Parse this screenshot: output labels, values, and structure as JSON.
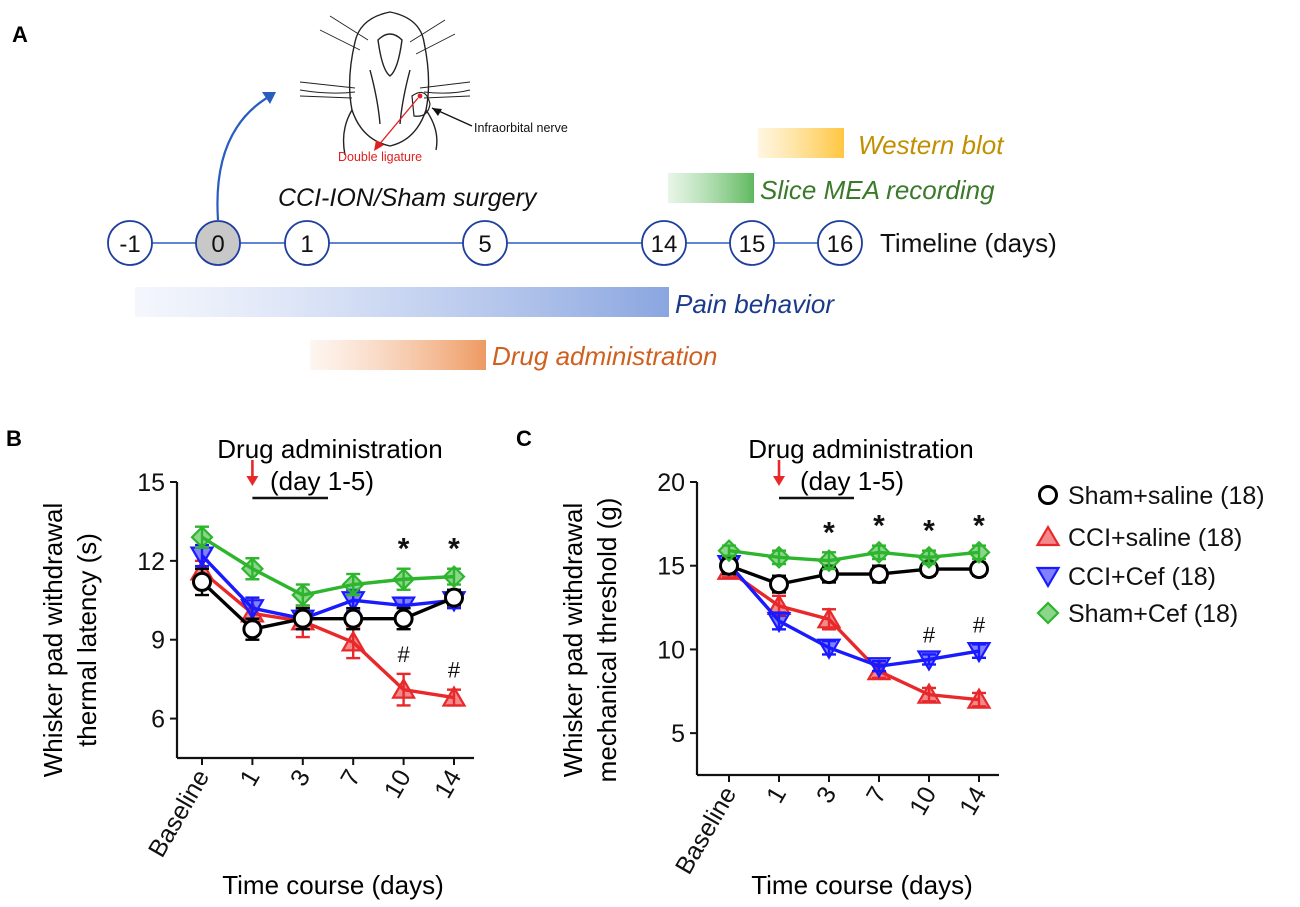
{
  "panel_labels": {
    "a": "A",
    "b": "B",
    "c": "C"
  },
  "colors": {
    "sham_saline": "#000000",
    "cci_saline": "#e8282a",
    "cci_cef": "#1a1aff",
    "sham_cef": "#2db52d",
    "timeline": "#2050c0",
    "western_blot": "#c09000",
    "slice_mea": "#3a7a2a",
    "pain_behavior": "#1a3a8a",
    "drug_admin": "#d06020",
    "ligature": "#e02020"
  },
  "timeline": {
    "days": [
      "-1",
      "0",
      "1",
      "5",
      "14",
      "15",
      "16"
    ],
    "label": "Timeline  (days)",
    "surgery_label": "CCI-ION/Sham surgery",
    "bars": {
      "western_blot": "Western blot",
      "slice_mea": "Slice MEA recording",
      "pain_behavior": "Pain behavior",
      "drug_admin": "Drug administration"
    },
    "illustration": {
      "nerve_label": "Infraorbital nerve",
      "ligature_label": "Double ligature"
    }
  },
  "legend": [
    {
      "key": "sham_saline",
      "label": "Sham+saline (18)",
      "marker": "circle"
    },
    {
      "key": "cci_saline",
      "label": "CCI+saline (18)",
      "marker": "triangle-up"
    },
    {
      "key": "cci_cef",
      "label": "CCI+Cef (18)",
      "marker": "triangle-down"
    },
    {
      "key": "sham_cef",
      "label": "Sham+Cef (18)",
      "marker": "diamond"
    }
  ],
  "chart_data": [
    {
      "id": "B",
      "type": "line",
      "title": "Drug administration",
      "subtitle": "(day 1-5)",
      "xlabel": "Time course (days)",
      "ylabel_line1": "Whisker pad withdrawal",
      "ylabel_line2": "thermal latency (s)",
      "categories": [
        "Baseline",
        "1",
        "3",
        "7",
        "10",
        "14"
      ],
      "ylim": [
        4.5,
        15
      ],
      "yticks": [
        6,
        9,
        12,
        15
      ],
      "ytick_labels": [
        "6",
        "9",
        "12",
        "15"
      ],
      "star_marks": [
        {
          "index": 4,
          "text": "*"
        },
        {
          "index": 5,
          "text": "*"
        }
      ],
      "hash_marks": [
        {
          "index": 4,
          "text": "#"
        },
        {
          "index": 5,
          "text": "#"
        }
      ],
      "series": [
        {
          "key": "sham_saline",
          "values": [
            11.2,
            9.4,
            9.8,
            9.8,
            9.8,
            10.6
          ],
          "err": [
            0.5,
            0.4,
            0.4,
            0.4,
            0.4,
            0.3
          ]
        },
        {
          "key": "cci_saline",
          "values": [
            11.6,
            10.0,
            9.7,
            8.9,
            7.1,
            6.8
          ],
          "err": [
            0.4,
            0.6,
            0.6,
            0.6,
            0.6,
            0.3
          ]
        },
        {
          "key": "cci_cef",
          "values": [
            12.2,
            10.2,
            9.8,
            10.5,
            10.3,
            10.5
          ],
          "err": [
            0.4,
            0.4,
            0.4,
            0.4,
            0.3,
            0.3
          ]
        },
        {
          "key": "sham_cef",
          "values": [
            12.9,
            11.7,
            10.7,
            11.1,
            11.3,
            11.4
          ],
          "err": [
            0.4,
            0.4,
            0.4,
            0.4,
            0.4,
            0.3
          ]
        }
      ]
    },
    {
      "id": "C",
      "type": "line",
      "title": "Drug administration",
      "subtitle": "(day 1-5)",
      "xlabel": "Time course (days)",
      "ylabel_line1": "Whisker pad withdrawal",
      "ylabel_line2": "mechanical threshold (g)",
      "categories": [
        "Baseline",
        "1",
        "3",
        "7",
        "10",
        "14"
      ],
      "ylim": [
        2.5,
        20
      ],
      "yticks": [
        5,
        10,
        15,
        20
      ],
      "ytick_labels": [
        "5",
        "10",
        "15",
        "20"
      ],
      "star_marks": [
        {
          "index": 2,
          "text": "*"
        },
        {
          "index": 3,
          "text": "*"
        },
        {
          "index": 4,
          "text": "*"
        },
        {
          "index": 5,
          "text": "*"
        }
      ],
      "hash_marks": [
        {
          "index": 4,
          "text": "#"
        },
        {
          "index": 5,
          "text": "#"
        }
      ],
      "series": [
        {
          "key": "sham_saline",
          "values": [
            15.0,
            13.9,
            14.5,
            14.5,
            14.8,
            14.8
          ],
          "err": [
            0.5,
            0.5,
            0.5,
            0.5,
            0.4,
            0.4
          ]
        },
        {
          "key": "cci_saline",
          "values": [
            14.7,
            12.6,
            11.8,
            8.7,
            7.3,
            7.0
          ],
          "err": [
            0.4,
            0.6,
            0.6,
            0.4,
            0.4,
            0.4
          ]
        },
        {
          "key": "cci_cef",
          "values": [
            15.1,
            11.7,
            10.1,
            9.0,
            9.4,
            9.9
          ],
          "err": [
            0.4,
            0.5,
            0.4,
            0.3,
            0.3,
            0.4
          ]
        },
        {
          "key": "sham_cef",
          "values": [
            15.9,
            15.5,
            15.3,
            15.8,
            15.5,
            15.8
          ],
          "err": [
            0.3,
            0.4,
            0.5,
            0.4,
            0.4,
            0.4
          ]
        }
      ]
    }
  ]
}
